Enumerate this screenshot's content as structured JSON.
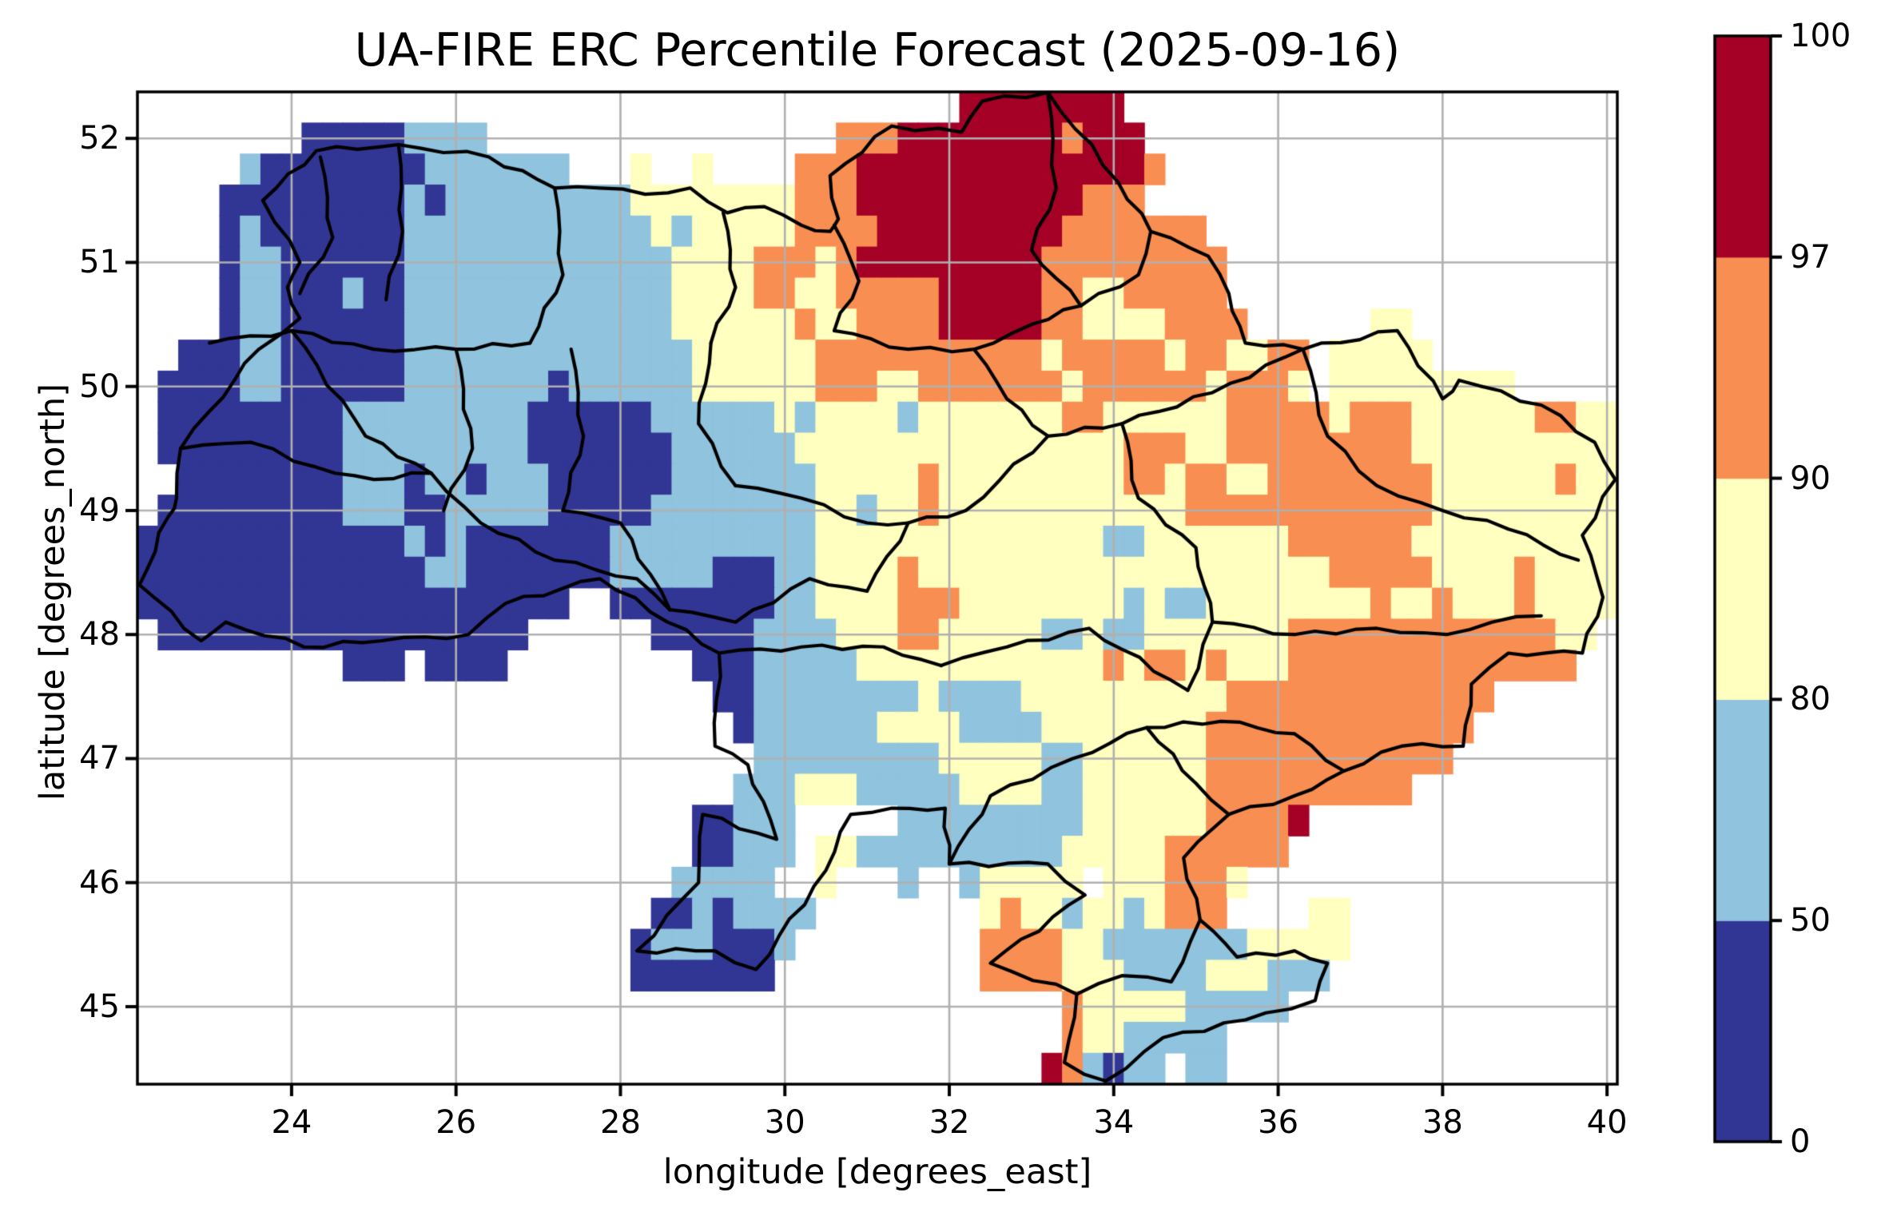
{
  "figure": {
    "title": "UA-FIRE ERC Percentile Forecast (2025-09-16)",
    "background_color": "#ffffff"
  },
  "chart_data": {
    "type": "heatmap",
    "title": "UA-FIRE ERC Percentile Forecast (2025-09-16)",
    "xlabel": "longitude [degrees_east]",
    "ylabel": "latitude [degrees_north]",
    "xlim": [
      22.125,
      40.125
    ],
    "ylim": [
      44.375,
      52.375
    ],
    "x_ticks": [
      24,
      26,
      28,
      30,
      32,
      34,
      36,
      38,
      40
    ],
    "y_ticks": [
      45,
      46,
      47,
      48,
      49,
      50,
      51,
      52
    ],
    "grid_on": true,
    "cell_size_deg": 0.25,
    "value_bins": {
      "A": "0-50",
      "B": "50-80",
      "C": "80-90",
      "D": "90-97",
      "E": "97-100"
    },
    "palette": {
      "A": "#313695",
      "B": "#90c3dd",
      "C": "#ffffbf",
      "D": "#f98e52",
      "E": "#a50026"
    },
    "gridline_color": "#b0b0b0",
    "border_color": "#000000",
    "colorbar": {
      "tick_labels": [
        "0",
        "50",
        "80",
        "90",
        "97",
        "100"
      ],
      "boundaries": [
        0,
        50,
        80,
        90,
        97,
        100
      ],
      "spacing": "uniform",
      "segment_keys_bottom_to_top": [
        "A",
        "B",
        "C",
        "D",
        "E"
      ]
    },
    "grid_rows": [
      "........................................EEEEEEEE........................",
      "........AAAAABBBB.................DDDEEEEEEEEDEEE.......................",
      ".....BAAAAAAAABBBBBBB...C..C....DDDEEEEEEEEEEEEEED......................",
      "....AAAAAAAAABABBBBBBBBBCCCCCCCCDDDEEEEEEEEEEEDDD.......................",
      "....ABAAAAAAABBBBBBBBBBBBCBCCCCCDDDDEEEEEEEEEDDDDDDD....................",
      "....ABBAAAAAABBBBBBBBBBBBBCCCCDDDCDEEEEEEEEEDDDDDDDDD...................",
      "....ABBAAABAABBBBBBBBBBBBBCCCCDDCCDDDDDEEEEEDDCCDDDDD...................",
      "....ABBAAAAAABBBBBBBBBBBBBCCCCCCDCCDDDDEEEEEDDCCCCDDDD......CC..........",
      "..AAABBAAAAAABBBBBBBBBBBBBBCCCCCCDDDDDDDDDDDCDDDDDCDDCCDD.CCCCC.........",
      ".AAAABBAAAAAABBBBBBBABBBBBBCCCCCCDDDCCDDDDDDDCDDDDDDCDDDC.CCCCCCCCC.....",
      ".AAAAAAAAABBBBBBBBBAAAAAABBBBBBCBCCCCBCCCCCCCDDCCCCCCDDDDDCDDDCCCCCCDDCC",
      ".AAAAAAAAABBBBBBBBBAAAAAAABBBBBBCCCCCCCCCCCCCCCCDDDCCDDDDDDDDDCCCCCCCCCC",
      "..AAAAAAAABBBABBABBBAAAAAABBBBBBBCCCCCDCCCCCCCCCDDCDDCCDDDDDDDDCCCCCCDCC",
      ".AAAAAAAAABBBAABBBBBAAAAABBBBBBBBCCBCCDCCCCCCCCCCCCDDDDDDDDDDDDCCCCCCCCC",
      "AAAAAAAAAAAAABABAAAAAAABBBBBBBBBBCCCCCCCCCCCCCCBBCCCCCCCDDDDDDCCCCCCCCCC",
      "AAAAAAAAAAAAAABBAAAAAAABBBBBAAABBCCCCDCCCCCCCCCCCCCCCCCCCCDDDDDCCCCDCCCC",
      "AAAAAAAAAAAAAAAAAAAAA..AAAAAAAABBCCCCDDDCCCCCCCCBCBBCCCCCCCCDCCDCCCDCCCC",
      ".AAAAAAAAAAAAAAAAAA......AAAAABBBBCCCDDCCCCCBBCBBCCCCCCCDDDDDDDDDDDDDCC.",
      "..........AAA.AAAA.........AAABBBBBCCCCCCCCCCCCDCDDCDCCCDDDDDDDDDDDDDD..",
      "............................AABBBBBBBBCBBBBCCCCCCCCCCDDDDDDDDDDDDD......",
      ".............................ABBBBBBCCCCBBBBCCCCCCCCDDDDDDDDDDDDD.......",
      "..............................BBBBBBBBBCCCCCBBCCCCCCDDDDDDDDDDDD........",
      ".............................BBBCCCBBBBBCCCCBBCCCCCCDDDDDDDDDD..........",
      "...........................AABBB.....BBBBBBBBBCCCCCCDDDDE...............",
      "...........................AABBB.CCBBBBBBBBBBCCCCCDDDDDD................",
      "..........................BBBBB..C...B..BCCCCC.CCCDDDC..................",
      ".........................AABABBBB........CDCCBCCBCDDD....CC.............",
      "........................ABBBAAAB.........DDDDCCBBBBBBBCCCCC.............",
      "........................AAAAAAA..........DDDDCCCBBBBCCCBBB..............",
      ".............................................DCCCCCBBBBB................",
      ".............................................DCCBBBBB...................",
      "............................................EDBABB.BB..................."
    ],
    "borders": {
      "outline": [
        [
          22.6,
          49.1
        ],
        [
          22.65,
          49.5
        ],
        [
          23.0,
          49.8
        ],
        [
          23.6,
          50.3
        ],
        [
          24.1,
          50.55
        ],
        [
          23.95,
          50.8
        ],
        [
          24.1,
          51.0
        ],
        [
          23.65,
          51.5
        ],
        [
          24.3,
          51.9
        ],
        [
          25.3,
          51.95
        ],
        [
          26.4,
          51.85
        ],
        [
          27.2,
          51.6
        ],
        [
          27.75,
          51.6
        ],
        [
          28.3,
          51.55
        ],
        [
          28.85,
          51.6
        ],
        [
          29.3,
          51.4
        ],
        [
          29.75,
          51.45
        ],
        [
          30.2,
          51.3
        ],
        [
          30.55,
          51.25
        ],
        [
          30.65,
          51.35
        ],
        [
          30.55,
          51.7
        ],
        [
          31.3,
          52.1
        ],
        [
          32.15,
          52.05
        ],
        [
          32.4,
          52.3
        ],
        [
          33.2,
          52.37
        ],
        [
          34.05,
          51.65
        ],
        [
          34.45,
          51.25
        ],
        [
          35.15,
          51.05
        ],
        [
          35.4,
          50.75
        ],
        [
          35.6,
          50.35
        ],
        [
          36.3,
          50.3
        ],
        [
          37.45,
          50.45
        ],
        [
          38.0,
          49.9
        ],
        [
          38.2,
          50.05
        ],
        [
          39.2,
          49.85
        ],
        [
          39.85,
          49.55
        ],
        [
          40.1,
          49.25
        ],
        [
          39.7,
          48.8
        ],
        [
          39.95,
          48.3
        ],
        [
          39.7,
          47.85
        ],
        [
          38.8,
          47.85
        ],
        [
          38.35,
          47.6
        ],
        [
          38.25,
          47.1
        ],
        [
          37.5,
          47.1
        ],
        [
          36.8,
          46.9
        ],
        [
          36.2,
          46.7
        ],
        [
          35.4,
          46.55
        ],
        [
          34.85,
          46.2
        ],
        [
          35.05,
          45.7
        ],
        [
          35.5,
          45.4
        ],
        [
          36.2,
          45.45
        ],
        [
          36.6,
          45.35
        ],
        [
          36.45,
          45.05
        ],
        [
          35.85,
          44.95
        ],
        [
          35.1,
          44.8
        ],
        [
          34.6,
          44.75
        ],
        [
          33.9,
          44.4
        ],
        [
          33.4,
          44.55
        ],
        [
          33.55,
          45.1
        ],
        [
          32.5,
          45.35
        ],
        [
          33.65,
          45.9
        ],
        [
          33.2,
          46.15
        ],
        [
          32.0,
          46.15
        ],
        [
          31.95,
          46.6
        ],
        [
          31.3,
          46.6
        ],
        [
          30.8,
          46.55
        ],
        [
          30.5,
          46.1
        ],
        [
          29.65,
          45.3
        ],
        [
          29.15,
          45.45
        ],
        [
          28.2,
          45.45
        ],
        [
          28.95,
          46.0
        ],
        [
          29.0,
          46.55
        ],
        [
          29.9,
          46.35
        ],
        [
          29.55,
          46.95
        ],
        [
          29.15,
          47.1
        ],
        [
          29.2,
          47.85
        ],
        [
          27.75,
          48.45
        ],
        [
          26.6,
          48.25
        ],
        [
          26.15,
          48.0
        ],
        [
          25.1,
          47.95
        ],
        [
          24.15,
          47.9
        ],
        [
          23.2,
          48.1
        ],
        [
          22.9,
          47.95
        ],
        [
          22.15,
          48.4
        ],
        [
          22.5,
          48.95
        ],
        [
          22.6,
          49.1
        ]
      ],
      "internal": [
        [
          [
            24.35,
            51.85
          ],
          [
            24.5,
            51.2
          ],
          [
            24.1,
            50.75
          ]
        ],
        [
          [
            25.3,
            51.95
          ],
          [
            25.35,
            51.25
          ],
          [
            25.15,
            50.7
          ]
        ],
        [
          [
            27.2,
            51.6
          ],
          [
            27.3,
            50.9
          ],
          [
            26.9,
            50.35
          ]
        ],
        [
          [
            29.25,
            51.4
          ],
          [
            29.4,
            50.8
          ],
          [
            29.1,
            50.35
          ]
        ],
        [
          [
            30.6,
            51.3
          ],
          [
            30.9,
            50.85
          ],
          [
            30.6,
            50.45
          ]
        ],
        [
          [
            33.2,
            52.35
          ],
          [
            33.3,
            51.6
          ],
          [
            33.0,
            51.1
          ],
          [
            33.6,
            50.65
          ]
        ],
        [
          [
            23.0,
            50.35
          ],
          [
            24.0,
            50.45
          ],
          [
            25.0,
            50.3
          ],
          [
            26.0,
            50.3
          ],
          [
            26.9,
            50.35
          ]
        ],
        [
          [
            26.0,
            50.3
          ],
          [
            26.2,
            49.5
          ],
          [
            25.85,
            49.0
          ]
        ],
        [
          [
            27.4,
            50.3
          ],
          [
            27.55,
            49.6
          ],
          [
            27.3,
            49.0
          ]
        ],
        [
          [
            29.1,
            50.35
          ],
          [
            28.95,
            49.7
          ],
          [
            29.4,
            49.2
          ]
        ],
        [
          [
            24.0,
            50.45
          ],
          [
            24.9,
            49.6
          ],
          [
            25.7,
            49.3
          ],
          [
            26.3,
            48.9
          ],
          [
            27.2,
            48.6
          ],
          [
            28.2,
            48.45
          ],
          [
            28.6,
            48.2
          ]
        ],
        [
          [
            28.6,
            48.2
          ],
          [
            29.4,
            48.1
          ],
          [
            30.3,
            48.45
          ],
          [
            31.0,
            48.35
          ]
        ],
        [
          [
            30.6,
            50.45
          ],
          [
            31.5,
            50.3
          ],
          [
            32.3,
            50.3
          ],
          [
            33.0,
            50.5
          ],
          [
            33.6,
            50.65
          ]
        ],
        [
          [
            31.0,
            48.35
          ],
          [
            31.5,
            48.9
          ],
          [
            32.2,
            49.0
          ],
          [
            33.2,
            49.6
          ],
          [
            34.1,
            49.7
          ],
          [
            35.2,
            49.95
          ],
          [
            36.3,
            50.3
          ]
        ],
        [
          [
            32.3,
            50.3
          ],
          [
            32.7,
            49.9
          ],
          [
            33.2,
            49.6
          ]
        ],
        [
          [
            34.1,
            49.7
          ],
          [
            34.3,
            49.1
          ],
          [
            35.0,
            48.7
          ],
          [
            35.2,
            48.1
          ],
          [
            34.9,
            47.55
          ]
        ],
        [
          [
            36.3,
            50.3
          ],
          [
            36.6,
            49.6
          ],
          [
            37.2,
            49.2
          ],
          [
            38.0,
            49.0
          ],
          [
            38.8,
            48.85
          ],
          [
            39.65,
            48.6
          ]
        ],
        [
          [
            35.2,
            48.1
          ],
          [
            36.2,
            48.0
          ],
          [
            37.2,
            48.05
          ],
          [
            38.05,
            48.0
          ],
          [
            38.6,
            48.1
          ],
          [
            39.2,
            48.15
          ]
        ],
        [
          [
            29.2,
            47.85
          ],
          [
            30.2,
            47.9
          ],
          [
            31.2,
            47.9
          ],
          [
            31.9,
            47.75
          ]
        ],
        [
          [
            31.9,
            47.75
          ],
          [
            32.7,
            47.9
          ],
          [
            33.7,
            48.05
          ],
          [
            34.9,
            47.55
          ]
        ],
        [
          [
            32.0,
            46.15
          ],
          [
            32.5,
            46.7
          ],
          [
            33.5,
            47.0
          ],
          [
            34.4,
            47.25
          ],
          [
            35.3,
            47.3
          ],
          [
            36.2,
            47.2
          ],
          [
            36.8,
            46.9
          ]
        ],
        [
          [
            22.65,
            49.5
          ],
          [
            23.5,
            49.55
          ],
          [
            24.3,
            49.35
          ],
          [
            25.0,
            49.25
          ],
          [
            25.7,
            49.3
          ]
        ],
        [
          [
            33.55,
            45.1
          ],
          [
            34.1,
            45.25
          ],
          [
            34.7,
            45.2
          ],
          [
            35.05,
            45.7
          ]
        ],
        [
          [
            34.45,
            51.25
          ],
          [
            34.3,
            50.9
          ],
          [
            33.6,
            50.65
          ]
        ],
        [
          [
            35.4,
            46.55
          ],
          [
            35.0,
            46.8
          ],
          [
            34.4,
            47.25
          ]
        ],
        [
          [
            27.3,
            49.0
          ],
          [
            28.0,
            48.9
          ],
          [
            28.6,
            48.2
          ]
        ],
        [
          [
            29.4,
            49.2
          ],
          [
            30.2,
            49.1
          ],
          [
            31.0,
            48.9
          ],
          [
            31.5,
            48.9
          ]
        ]
      ]
    }
  }
}
